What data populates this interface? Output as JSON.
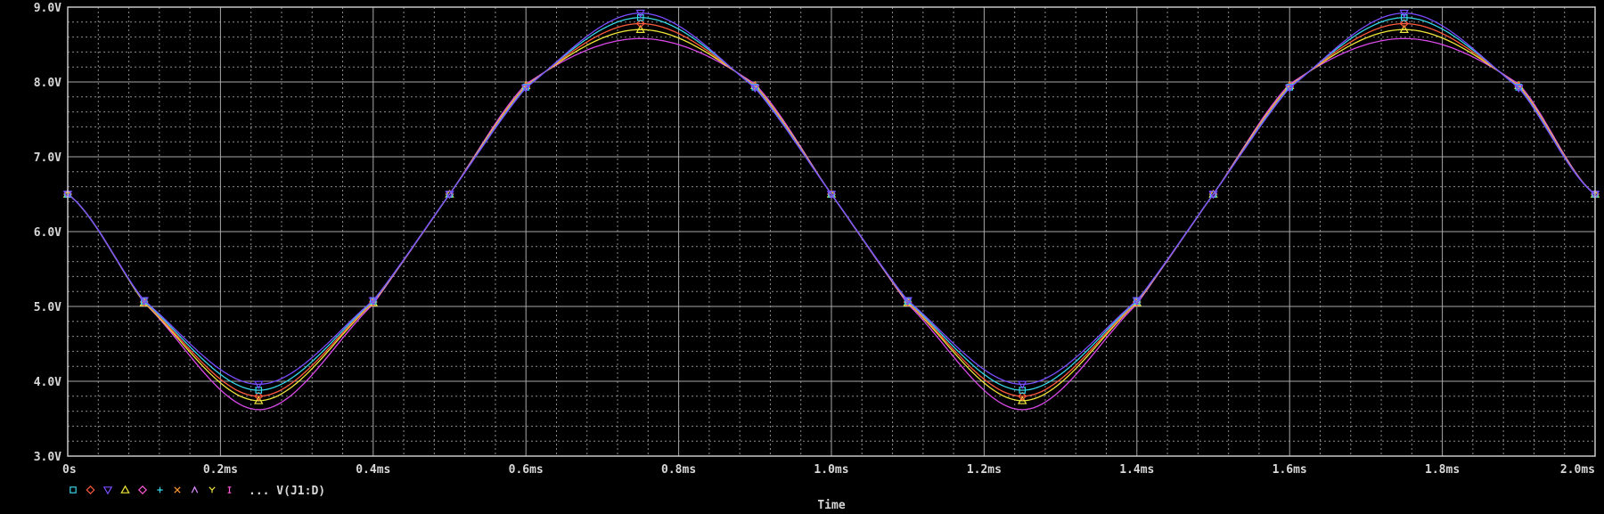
{
  "colors": {
    "background": "#000000",
    "grid_major": "#a8a8a8",
    "grid_minor": "#8c8c8c",
    "text": "#d8d8d8"
  },
  "chart_data": {
    "type": "line",
    "xlabel": "Time",
    "ylabel": "",
    "xlim": [
      0,
      2.0
    ],
    "ylim": [
      3.0,
      9.0
    ],
    "x_ticks": [
      {
        "value": 0.0,
        "label": "0s"
      },
      {
        "value": 0.2,
        "label": "0.2ms"
      },
      {
        "value": 0.4,
        "label": "0.4ms"
      },
      {
        "value": 0.6,
        "label": "0.6ms"
      },
      {
        "value": 0.8,
        "label": "0.8ms"
      },
      {
        "value": 1.0,
        "label": "1.0ms"
      },
      {
        "value": 1.2,
        "label": "1.2ms"
      },
      {
        "value": 1.4,
        "label": "1.4ms"
      },
      {
        "value": 1.6,
        "label": "1.6ms"
      },
      {
        "value": 1.8,
        "label": "1.8ms"
      },
      {
        "value": 2.0,
        "label": "2.0ms"
      }
    ],
    "y_ticks": [
      {
        "value": 3.0,
        "label": "3.0V"
      },
      {
        "value": 4.0,
        "label": "4.0V"
      },
      {
        "value": 5.0,
        "label": "5.0V"
      },
      {
        "value": 6.0,
        "label": "6.0V"
      },
      {
        "value": 7.0,
        "label": "7.0V"
      },
      {
        "value": 8.0,
        "label": "8.0V"
      },
      {
        "value": 9.0,
        "label": "9.0V"
      }
    ],
    "grid": true,
    "legend": {
      "placement": "bottom-left",
      "markers": [
        {
          "shape": "square",
          "color": "#36d6e8"
        },
        {
          "shape": "diamond",
          "color": "#ff5a3c"
        },
        {
          "shape": "triangle-down",
          "color": "#7a4cff"
        },
        {
          "shape": "triangle",
          "color": "#f3ea3a"
        },
        {
          "shape": "diamond",
          "color": "#ff5ad8"
        },
        {
          "shape": "plus",
          "color": "#36d6e8"
        },
        {
          "shape": "x",
          "color": "#ff9a2e"
        },
        {
          "shape": "lambda",
          "color": "#d98bff"
        },
        {
          "shape": "y",
          "color": "#f3ea3a"
        },
        {
          "shape": "bar",
          "color": "#ff5ad8"
        }
      ],
      "text": "... V(J1:D)"
    },
    "series": [
      {
        "color": "#d948e8",
        "marker": "none",
        "x": [
          0.0,
          0.1,
          0.25,
          0.4,
          0.5,
          0.6,
          0.75,
          0.9,
          1.0,
          1.1,
          1.25,
          1.4,
          1.5,
          1.6,
          1.75,
          1.9,
          2.0
        ],
        "values": [
          6.5,
          5.05,
          3.62,
          5.03,
          6.5,
          7.97,
          8.58,
          7.97,
          6.5,
          5.03,
          3.62,
          5.03,
          6.5,
          7.97,
          8.58,
          7.97,
          6.5
        ]
      },
      {
        "color": "#f0e63a",
        "marker": "triangle",
        "x": [
          0.0,
          0.1,
          0.25,
          0.4,
          0.5,
          0.6,
          0.75,
          0.9,
          1.0,
          1.1,
          1.25,
          1.4,
          1.5,
          1.6,
          1.75,
          1.9,
          2.0
        ],
        "values": [
          6.5,
          5.05,
          3.74,
          5.05,
          6.5,
          7.95,
          8.7,
          7.95,
          6.5,
          5.05,
          3.74,
          5.05,
          6.5,
          7.95,
          8.7,
          7.95,
          6.5
        ]
      },
      {
        "color": "#ff5a3c",
        "marker": "diamond",
        "x": [
          0.0,
          0.1,
          0.25,
          0.4,
          0.5,
          0.6,
          0.75,
          0.9,
          1.0,
          1.1,
          1.25,
          1.4,
          1.5,
          1.6,
          1.75,
          1.9,
          2.0
        ],
        "values": [
          6.5,
          5.06,
          3.8,
          5.06,
          6.5,
          7.94,
          8.78,
          7.94,
          6.5,
          5.06,
          3.8,
          5.06,
          6.5,
          7.94,
          8.78,
          7.94,
          6.5
        ]
      },
      {
        "color": "#36d6e8",
        "marker": "square",
        "x": [
          0.0,
          0.1,
          0.25,
          0.4,
          0.5,
          0.6,
          0.75,
          0.9,
          1.0,
          1.1,
          1.25,
          1.4,
          1.5,
          1.6,
          1.75,
          1.9,
          2.0
        ],
        "values": [
          6.5,
          5.07,
          3.88,
          5.07,
          6.5,
          7.93,
          8.86,
          7.93,
          6.5,
          5.07,
          3.88,
          5.07,
          6.5,
          7.93,
          8.86,
          7.93,
          6.5
        ]
      },
      {
        "color": "#7a4cff",
        "marker": "triangle-down",
        "x": [
          0.0,
          0.1,
          0.25,
          0.4,
          0.5,
          0.6,
          0.75,
          0.9,
          1.0,
          1.1,
          1.25,
          1.4,
          1.5,
          1.6,
          1.75,
          1.9,
          2.0
        ],
        "values": [
          6.5,
          5.08,
          3.96,
          5.08,
          6.5,
          7.92,
          8.92,
          7.92,
          6.5,
          5.08,
          3.96,
          5.08,
          6.5,
          7.92,
          8.92,
          7.92,
          6.5
        ]
      }
    ]
  }
}
